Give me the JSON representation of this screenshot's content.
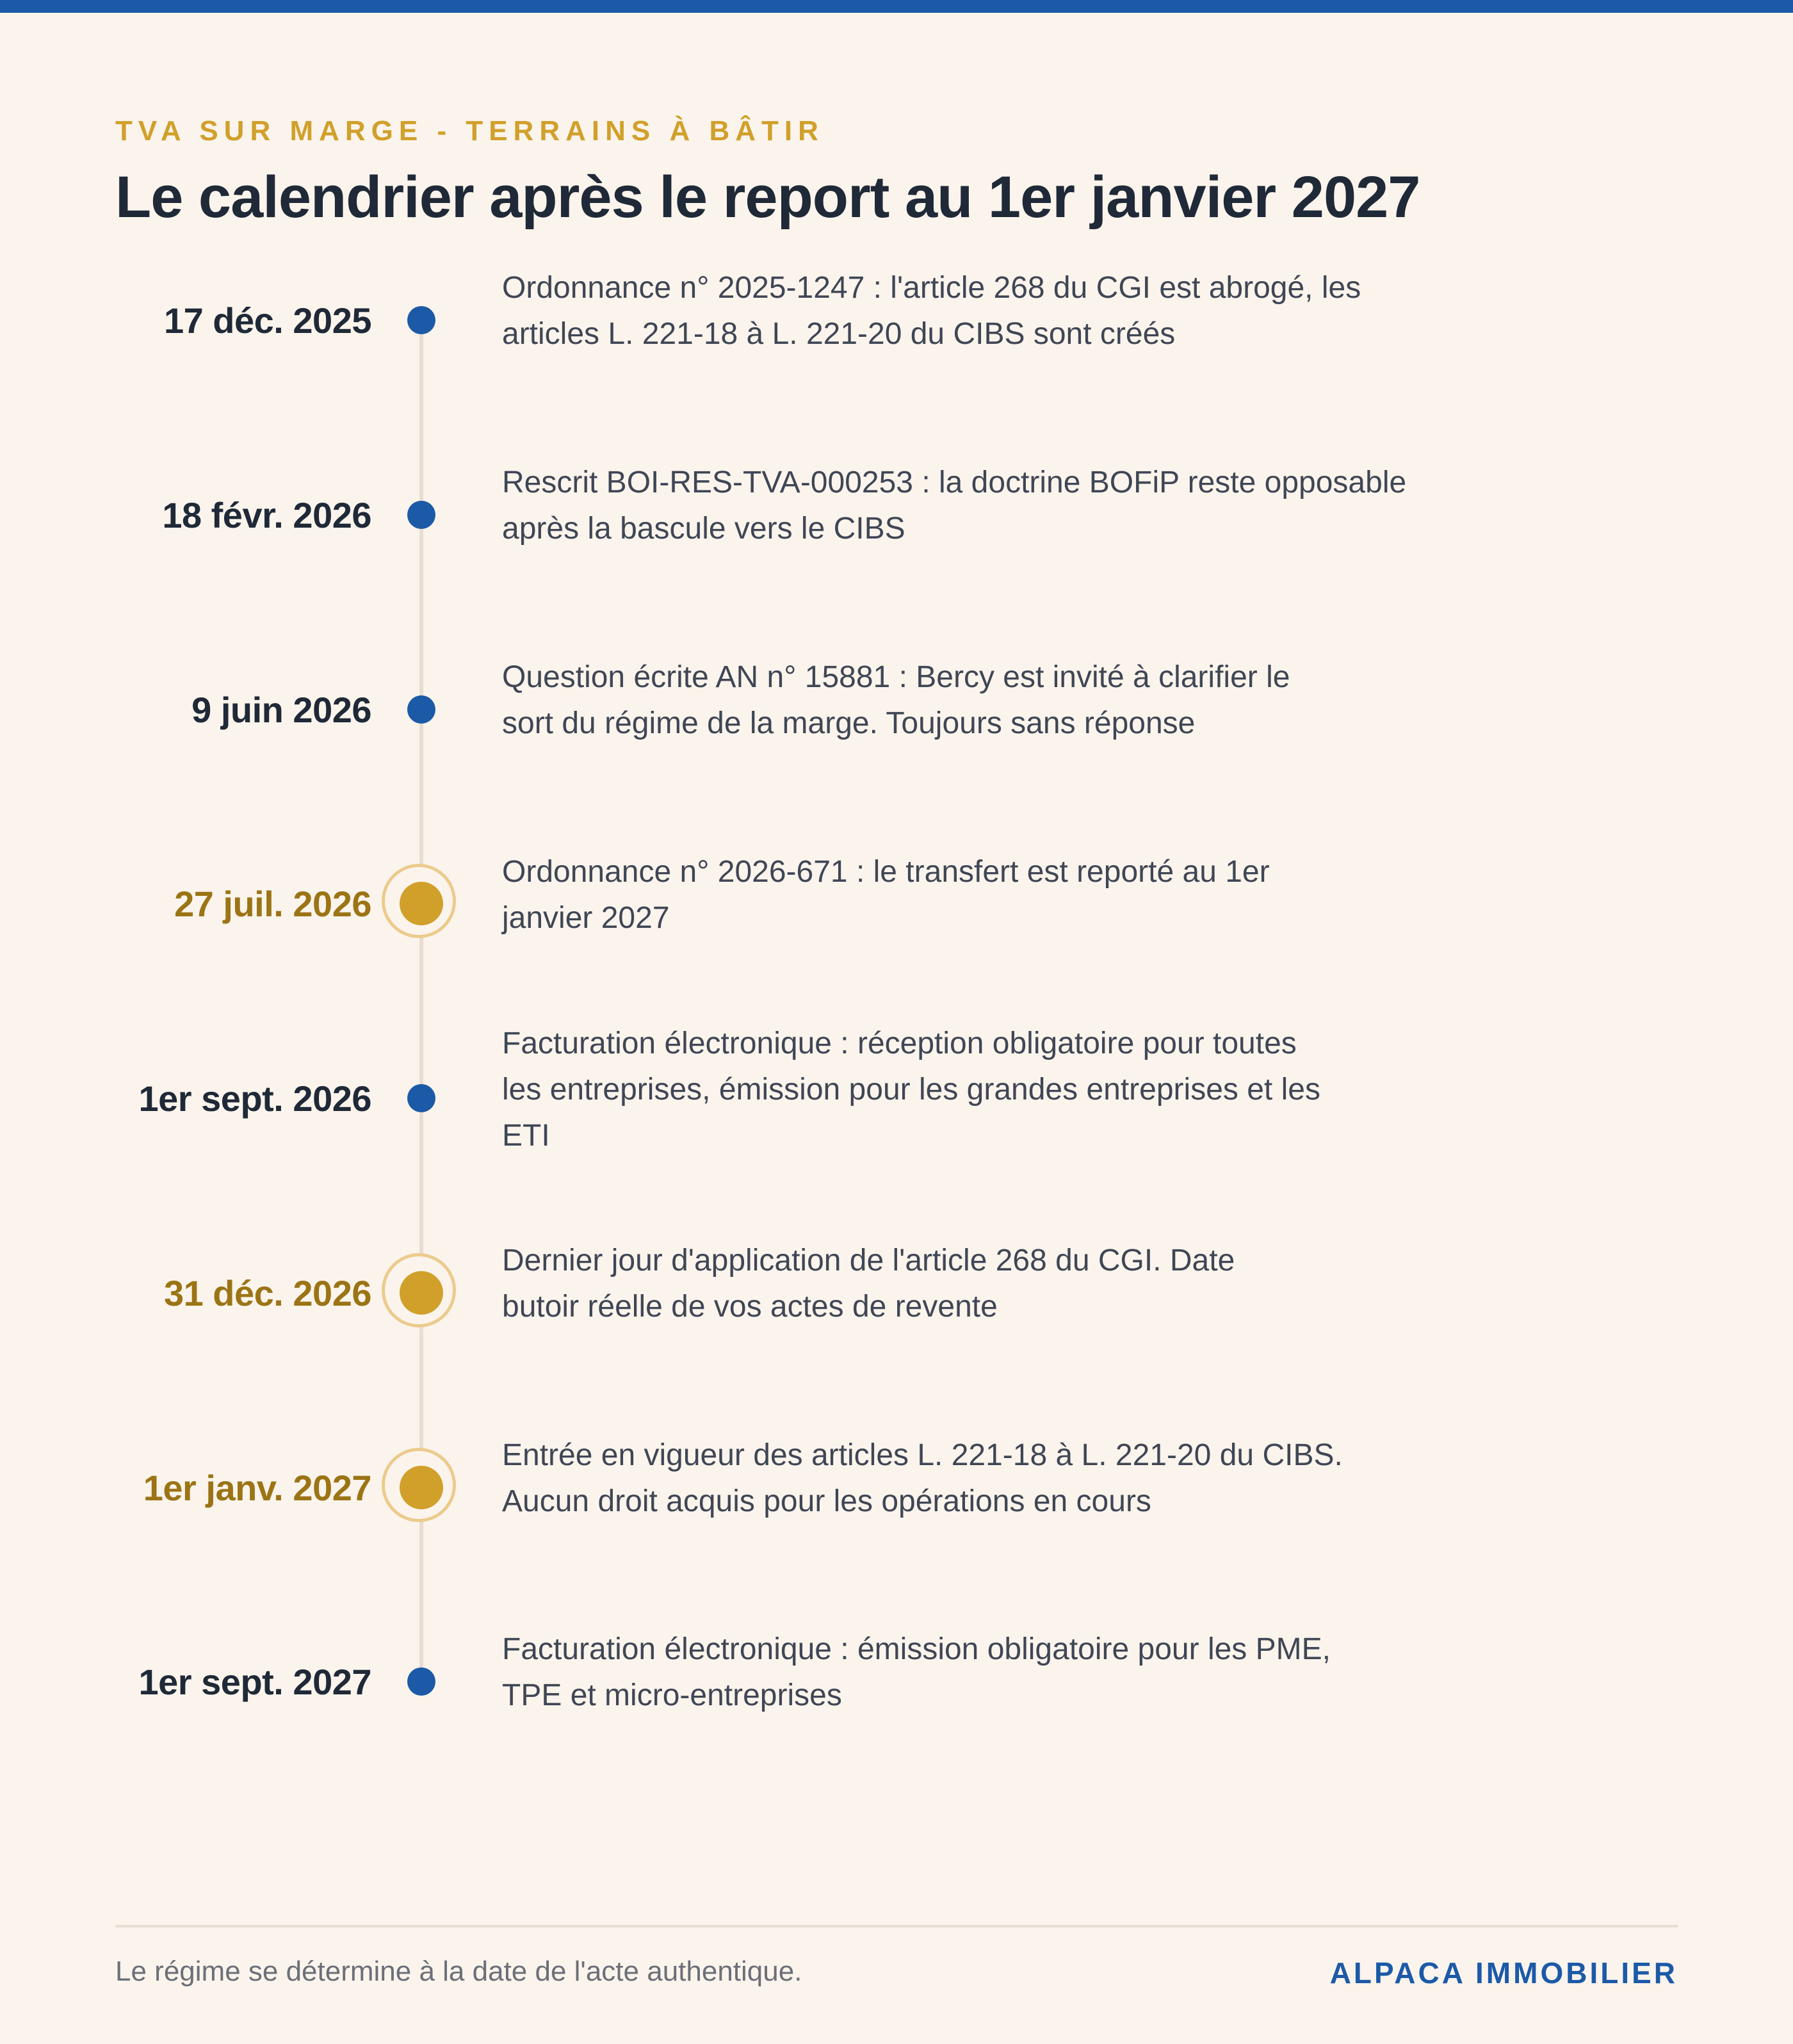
{
  "header": {
    "kicker": "TVA SUR MARGE - TERRAINS À BÂTIR",
    "title": "Le calendrier après le report au 1er janvier 2027"
  },
  "colors": {
    "accent_blue": "#1c5aa8",
    "accent_gold": "#d1a02b",
    "gold_text": "#9b7415",
    "background": "#fbf4ec"
  },
  "events": [
    {
      "date": "17 déc. 2025",
      "description": [
        "Ordonnance n° 2025-1247 : l'article 268 du CGI est abrogé, les",
        "articles L. 221-18 à L. 221-20 du CIBS sont créés"
      ],
      "highlight": false
    },
    {
      "date": "18 févr. 2026",
      "description": [
        "Rescrit BOI-RES-TVA-000253 : la doctrine BOFiP reste opposable",
        "après la bascule vers le CIBS"
      ],
      "highlight": false
    },
    {
      "date": "9 juin 2026",
      "description": [
        "Question écrite AN n° 15881 : Bercy est invité à clarifier le",
        "sort du régime de la marge. Toujours sans réponse"
      ],
      "highlight": false
    },
    {
      "date": "27 juil. 2026",
      "description": [
        "Ordonnance n° 2026-671 : le transfert est reporté au 1er",
        "janvier 2027"
      ],
      "highlight": true
    },
    {
      "date": "1er sept. 2026",
      "description": [
        "Facturation électronique : réception obligatoire pour toutes",
        "les entreprises, émission pour les grandes entreprises et les",
        "ETI"
      ],
      "highlight": false
    },
    {
      "date": "31 déc. 2026",
      "description": [
        "Dernier jour d'application de l'article 268 du CGI. Date",
        "butoir réelle de vos actes de revente"
      ],
      "highlight": true
    },
    {
      "date": "1er janv. 2027",
      "description": [
        "Entrée en vigueur des articles L. 221-18 à L. 221-20 du CIBS.",
        "Aucun droit acquis pour les opérations en cours"
      ],
      "highlight": true
    },
    {
      "date": "1er sept. 2027",
      "description": [
        "Facturation électronique : émission obligatoire pour les PME,",
        "TPE et micro-entreprises"
      ],
      "highlight": false
    }
  ],
  "footer": {
    "note": "Le régime se détermine à la date de l'acte authentique.",
    "brand": "ALPACA IMMOBILIER"
  }
}
